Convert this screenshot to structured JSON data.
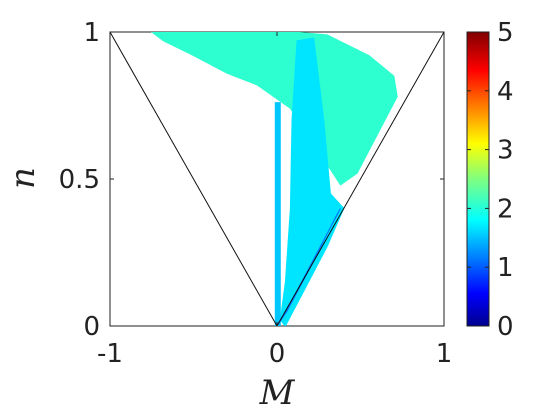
{
  "chart_data": {
    "type": "heatmap",
    "xlabel": "M",
    "ylabel": "n",
    "xlim": [
      -1,
      1
    ],
    "ylim": [
      0,
      1
    ],
    "x_ticks": [
      "-1",
      "0",
      "1"
    ],
    "y_ticks": [
      "0",
      "0.5",
      "1"
    ],
    "colorbar": {
      "range": [
        0,
        5
      ],
      "ticks": [
        "0",
        "1",
        "2",
        "3",
        "4",
        "5"
      ],
      "colormap": "jet"
    },
    "boundary_lines": [
      {
        "name": "n = -M",
        "from": [
          0,
          0
        ],
        "to": [
          -1,
          1
        ]
      },
      {
        "name": "n = M",
        "from": [
          0,
          0
        ],
        "to": [
          1,
          1
        ]
      }
    ],
    "regions": [
      {
        "description": "upper plume",
        "value": 2.1,
        "polygon": [
          [
            -0.75,
            1.0
          ],
          [
            0.1,
            1.0
          ],
          [
            0.3,
            0.99
          ],
          [
            0.55,
            0.92
          ],
          [
            0.7,
            0.85
          ],
          [
            0.72,
            0.78
          ],
          [
            0.6,
            0.65
          ],
          [
            0.48,
            0.52
          ],
          [
            0.38,
            0.48
          ],
          [
            0.22,
            0.62
          ],
          [
            0.08,
            0.74
          ],
          [
            -0.12,
            0.82
          ],
          [
            -0.3,
            0.86
          ],
          [
            -0.5,
            0.92
          ],
          [
            -0.68,
            0.97
          ]
        ]
      },
      {
        "description": "central wedge",
        "value": 1.75,
        "polygon": [
          [
            0.02,
            0.02
          ],
          [
            0.05,
            0.15
          ],
          [
            0.08,
            0.4
          ],
          [
            0.09,
            0.7
          ],
          [
            0.12,
            0.97
          ],
          [
            0.22,
            0.98
          ],
          [
            0.28,
            0.7
          ],
          [
            0.32,
            0.45
          ],
          [
            0.4,
            0.4
          ],
          [
            0.3,
            0.27
          ],
          [
            0.18,
            0.14
          ],
          [
            0.05,
            0.0
          ]
        ]
      },
      {
        "description": "vertical strip near M=0",
        "value": 1.6,
        "polygon": [
          [
            -0.01,
            0.0
          ],
          [
            0.02,
            0.0
          ],
          [
            0.02,
            0.76
          ],
          [
            -0.01,
            0.76
          ]
        ]
      },
      {
        "description": "lower wedge along n=M",
        "value": 1.2,
        "polygon": [
          [
            0.0,
            0.0
          ],
          [
            0.06,
            0.05
          ],
          [
            0.2,
            0.2
          ],
          [
            0.35,
            0.37
          ],
          [
            0.38,
            0.4
          ],
          [
            0.12,
            0.12
          ]
        ]
      }
    ]
  }
}
